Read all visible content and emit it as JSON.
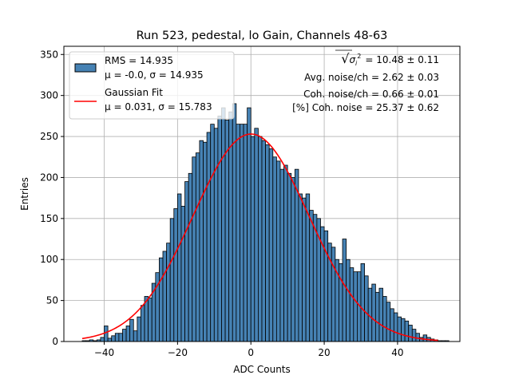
{
  "chart_data": {
    "type": "bar",
    "title": "Run 523, pedestal, lo Gain, Channels 48-63",
    "xlabel": "ADC Counts",
    "ylabel": "Entries",
    "xlim": [
      -51,
      57
    ],
    "ylim": [
      0,
      360
    ],
    "grid": true,
    "bin_start": -46,
    "bin_width": 1,
    "values": [
      1,
      1,
      2,
      1,
      2,
      5,
      19,
      4,
      7,
      10,
      10,
      15,
      19,
      27,
      13,
      30,
      44,
      55,
      53,
      71,
      84,
      102,
      110,
      120,
      150,
      162,
      180,
      165,
      195,
      205,
      225,
      230,
      245,
      243,
      255,
      265,
      260,
      275,
      285,
      270,
      280,
      290,
      265,
      265,
      265,
      285,
      250,
      260,
      250,
      245,
      240,
      235,
      225,
      220,
      210,
      215,
      205,
      200,
      210,
      180,
      175,
      180,
      160,
      155,
      150,
      140,
      135,
      120,
      115,
      100,
      95,
      125,
      100,
      90,
      85,
      85,
      95,
      80,
      65,
      70,
      60,
      65,
      55,
      48,
      40,
      35,
      30,
      28,
      25,
      20,
      15,
      10,
      5,
      8,
      5,
      3,
      2,
      1,
      1,
      1
    ],
    "xticks": [
      -40,
      -20,
      0,
      20,
      40
    ],
    "yticks": [
      0,
      50,
      100,
      150,
      200,
      250,
      300,
      350
    ],
    "fit": {
      "mu": 0.031,
      "sigma": 15.783,
      "amplitude": 253,
      "x_start": -46,
      "x_end": 51
    },
    "legend": {
      "position": "top-left",
      "entries": [
        {
          "line1": "RMS = 14.935",
          "line2": "μ = -0.0, σ = 14.935",
          "color": "#4682b4",
          "marker": "bar"
        },
        {
          "line1": "Gaussian Fit",
          "line2": "μ = 0.031, σ = 15.783",
          "color": "#ff0000",
          "marker": "line"
        }
      ]
    },
    "annotations": [
      {
        "prefix": "√",
        "label": "σ",
        "sub": "i",
        "sup": "2",
        "value": "= 10.48 ± 0.11"
      },
      {
        "text": "Avg. noise/ch = 2.62 ± 0.03"
      },
      {
        "text": "Coh. noise/ch = 0.66 ± 0.01"
      },
      {
        "text": "[%] Coh. noise = 25.37 ± 0.62"
      }
    ],
    "colors": {
      "bar_fill": "#4682b4",
      "bar_edge": "#000000",
      "fit_line": "#ff0000",
      "grid": "#b0b0b0"
    }
  }
}
